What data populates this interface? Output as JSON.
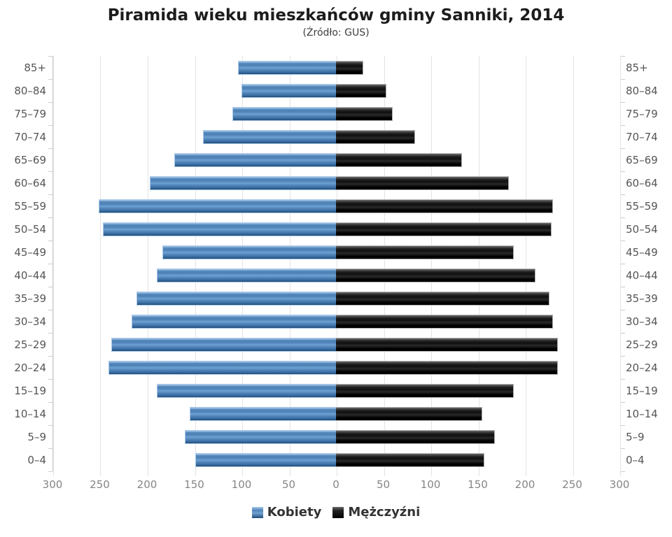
{
  "header": {
    "title": "Piramida wieku mieszkańców gminy Sanniki, 2014",
    "subtitle": "(Źródło: GUS)"
  },
  "legend": {
    "items": [
      {
        "label": "Kobiety",
        "series": "female"
      },
      {
        "label": "Mężczyźni",
        "series": "male"
      }
    ]
  },
  "colors": {
    "female_bar": "#5084b8",
    "male_bar": "#141414",
    "grid_line": "#e3e3e3",
    "axis_line": "#cccccc",
    "tick_label": "#858585",
    "category_label": "#555555",
    "title_text": "#1c1c1c"
  },
  "chart_data": {
    "type": "bar",
    "subtype": "population-pyramid",
    "title": "Piramida wieku mieszkańców gminy Sanniki, 2014",
    "subtitle": "(Źródło: GUS)",
    "orientation": "horizontal-mirrored",
    "grid": true,
    "legend_position": "bottom",
    "categories_top_to_bottom": [
      "85+",
      "80–84",
      "75–79",
      "70–74",
      "65–69",
      "60–64",
      "55–59",
      "50–54",
      "45–49",
      "40–44",
      "35–39",
      "30–34",
      "25–29",
      "20–24",
      "15–19",
      "10–14",
      "5–9",
      "0–4"
    ],
    "series": [
      {
        "name": "Kobiety",
        "side": "left",
        "color": "#5084b8",
        "values": [
          104,
          100,
          110,
          141,
          171,
          197,
          251,
          247,
          184,
          190,
          211,
          216,
          238,
          241,
          190,
          155,
          160,
          149
        ]
      },
      {
        "name": "Mężczyźni",
        "side": "right",
        "color": "#141414",
        "values": [
          29,
          53,
          60,
          84,
          133,
          183,
          230,
          228,
          188,
          211,
          226,
          230,
          235,
          235,
          188,
          155,
          168,
          157
        ]
      }
    ],
    "x_axis": {
      "max_each_side": 300,
      "tick_step": 50,
      "tick_labels": [
        "300",
        "250",
        "200",
        "150",
        "100",
        "50",
        "0",
        "50",
        "100",
        "150",
        "200",
        "250",
        "300"
      ]
    }
  }
}
